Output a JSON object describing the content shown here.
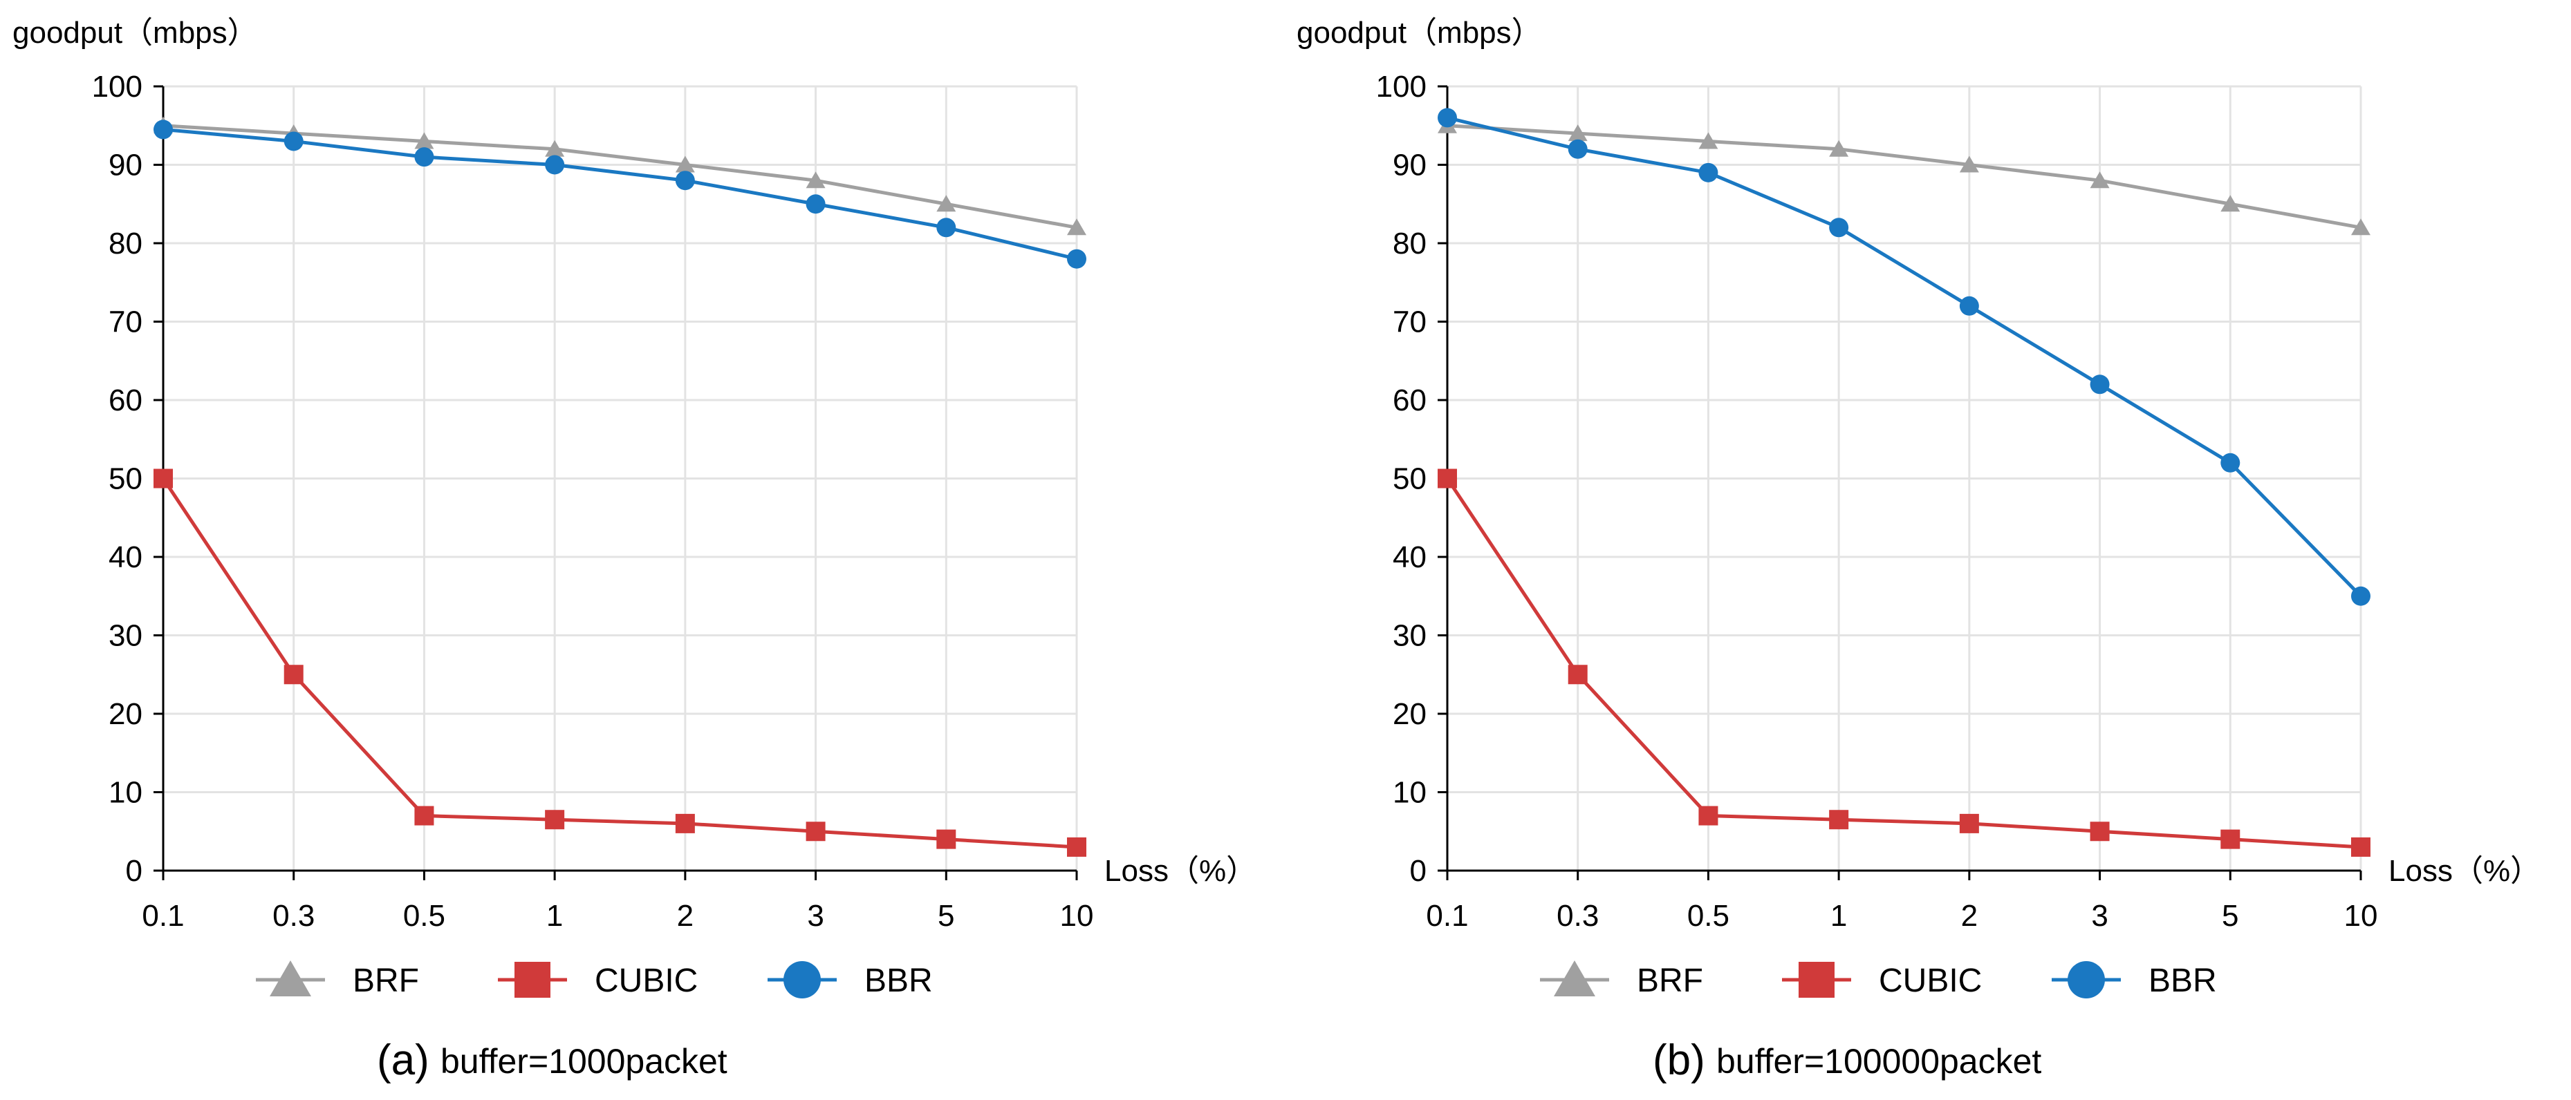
{
  "chart_data": [
    {
      "type": "line",
      "caption_letter": "(a)",
      "caption": "buffer=1000packet",
      "ylabel": "goodput（mbps）",
      "xlabel": "Loss（%）",
      "categories": [
        "0.1",
        "0.3",
        "0.5",
        "1",
        "2",
        "3",
        "5",
        "10"
      ],
      "ylim": [
        0,
        100
      ],
      "yticks": [
        "0",
        "10",
        "20",
        "30",
        "40",
        "50",
        "60",
        "70",
        "80",
        "90",
        "100"
      ],
      "grid": true,
      "legend_position": "bottom",
      "series": [
        {
          "name": "BRF",
          "color": "#a0a0a0",
          "marker": "triangle",
          "values": [
            95,
            94,
            93,
            92,
            90,
            88,
            85,
            82
          ]
        },
        {
          "name": "CUBIC",
          "color": "#d03a3a",
          "marker": "square",
          "values": [
            50,
            25,
            7,
            6.5,
            6,
            5,
            4,
            3
          ]
        },
        {
          "name": "BBR",
          "color": "#1a78c2",
          "marker": "circle",
          "values": [
            94.5,
            93,
            91,
            90,
            88,
            85,
            82,
            78
          ]
        }
      ]
    },
    {
      "type": "line",
      "caption_letter": "(b)",
      "caption": "buffer=100000packet",
      "ylabel": "goodput（mbps）",
      "xlabel": "Loss（%）",
      "categories": [
        "0.1",
        "0.3",
        "0.5",
        "1",
        "2",
        "3",
        "5",
        "10"
      ],
      "ylim": [
        0,
        100
      ],
      "yticks": [
        "0",
        "10",
        "20",
        "30",
        "40",
        "50",
        "60",
        "70",
        "80",
        "90",
        "100"
      ],
      "grid": true,
      "legend_position": "bottom",
      "series": [
        {
          "name": "BRF",
          "color": "#a0a0a0",
          "marker": "triangle",
          "values": [
            95,
            94,
            93,
            92,
            90,
            88,
            85,
            82
          ]
        },
        {
          "name": "CUBIC",
          "color": "#d03a3a",
          "marker": "square",
          "values": [
            50,
            25,
            7,
            6.5,
            6,
            5,
            4,
            3
          ]
        },
        {
          "name": "BBR",
          "color": "#1a78c2",
          "marker": "circle",
          "values": [
            96,
            92,
            89,
            82,
            72,
            62,
            52,
            35
          ]
        }
      ]
    }
  ]
}
